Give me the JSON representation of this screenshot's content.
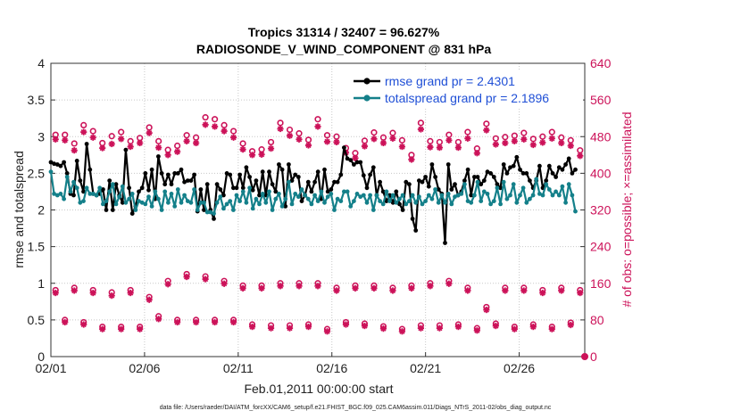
{
  "chart_data": {
    "type": "line",
    "title_line1": "Tropics 31314 / 32407 = 96.627%",
    "title_line2": "RADIOSONDE_V_WIND_COMPONENT @ 831 hPa",
    "ylabel": "rmse and totalspread",
    "y2label": "# of obs: o=possible; ×=assimilated",
    "xlabel": "Feb.01,2011 00:00:00 start",
    "footnote": "data file: /Users/raeder/DAI/ATM_forcXX/CAM6_setup/f.e21.FHIST_BGC.f09_025.CAM6assim.011/Diags_NTrS_2011-02/obs_diag_output.nc",
    "ylim": [
      0,
      4
    ],
    "y2lim": [
      0,
      640
    ],
    "xlim": [
      0,
      28.5
    ],
    "yticks": [
      "0",
      "0.5",
      "1",
      "1.5",
      "2",
      "2.5",
      "3",
      "3.5",
      "4"
    ],
    "y2ticks": [
      "0",
      "80",
      "160",
      "240",
      "320",
      "400",
      "480",
      "560",
      "640"
    ],
    "xticks": [
      {
        "x": 0,
        "label": "02/01"
      },
      {
        "x": 5,
        "label": "02/06"
      },
      {
        "x": 10,
        "label": "02/11"
      },
      {
        "x": 15,
        "label": "02/16"
      },
      {
        "x": 20,
        "label": "02/21"
      },
      {
        "x": 25,
        "label": "02/26"
      }
    ],
    "legend": [
      {
        "label": "rmse grand pr = 2.4301",
        "color": "#000000"
      },
      {
        "label": "totalspread grand pr = 2.1896",
        "color": "#14808a"
      }
    ],
    "series": [
      {
        "name": "rmse",
        "color": "#000000",
        "values": [
          2.65,
          2.63,
          2.62,
          2.6,
          2.65,
          2.5,
          2.22,
          2.2,
          2.67,
          2.4,
          2.25,
          2.9,
          2.55,
          2.22,
          2.2,
          2.22,
          2.28,
          2.0,
          2.4,
          2.0,
          2.35,
          2.2,
          2.1,
          2.82,
          2.3,
          1.95,
          2.05,
          2.25,
          2.3,
          2.5,
          2.27,
          2.55,
          2.15,
          2.73,
          2.5,
          2.35,
          2.48,
          2.35,
          2.5,
          2.5,
          2.55,
          2.38,
          2.4,
          2.4,
          2.48,
          1.98,
          2.28,
          2.0,
          2.35,
          2.0,
          1.88,
          2.35,
          2.28,
          2.2,
          2.5,
          2.48,
          2.3,
          2.3,
          2.48,
          2.3,
          2.58,
          2.45,
          2.27,
          2.4,
          2.2,
          2.52,
          2.2,
          2.52,
          2.35,
          2.25,
          2.62,
          2.55,
          2.05,
          2.62,
          2.4,
          2.48,
          2.45,
          2.12,
          2.2,
          2.38,
          2.25,
          2.38,
          2.52,
          2.15,
          2.55,
          2.25,
          2.28,
          2.38,
          2.38,
          2.48,
          2.85,
          2.7,
          2.68,
          2.62,
          2.65,
          2.65,
          2.47,
          2.3,
          2.48,
          2.58,
          2.2,
          2.38,
          2.25,
          2.12,
          2.2,
          2.1,
          2.25,
          2.08,
          2.0,
          2.38,
          2.35,
          1.88,
          1.72,
          2.4,
          2.38,
          2.45,
          2.32,
          2.62,
          2.45,
          2.28,
          2.22,
          1.55,
          2.62,
          2.28,
          2.35,
          2.2,
          2.25,
          2.4,
          2.55,
          2.2,
          2.45,
          2.45,
          2.35,
          2.4,
          2.52,
          2.5,
          2.45,
          2.35,
          2.3,
          2.62,
          2.5,
          2.58,
          2.6,
          2.72,
          2.55,
          2.5,
          2.5,
          2.4,
          2.3,
          2.4,
          2.6,
          2.3,
          2.4,
          2.6,
          2.5,
          2.45,
          2.58,
          2.55,
          2.62,
          2.7,
          2.5,
          2.55
        ]
      },
      {
        "name": "totalspread",
        "color": "#14808a",
        "values": [
          2.52,
          2.22,
          2.2,
          2.22,
          2.15,
          2.45,
          2.25,
          2.38,
          2.3,
          2.1,
          2.12,
          2.3,
          2.22,
          2.22,
          2.2,
          2.3,
          2.08,
          2.12,
          2.25,
          2.35,
          2.08,
          2.18,
          2.32,
          2.1,
          2.15,
          2.22,
          2.0,
          2.12,
          2.1,
          2.08,
          2.18,
          2.05,
          2.25,
          2.15,
          2.0,
          2.25,
          2.1,
          2.22,
          2.05,
          2.28,
          2.1,
          2.2,
          2.12,
          2.1,
          2.28,
          2.0,
          2.1,
          2.1,
          1.97,
          1.97,
          1.95,
          2.1,
          2.18,
          2.02,
          2.08,
          2.12,
          2.0,
          2.2,
          2.12,
          2.25,
          2.1,
          2.3,
          2.02,
          2.15,
          2.08,
          2.22,
          2.1,
          2.25,
          2.0,
          2.15,
          2.22,
          2.05,
          2.15,
          2.38,
          2.08,
          2.22,
          2.18,
          2.28,
          2.2,
          2.15,
          2.08,
          2.2,
          2.12,
          2.25,
          2.1,
          2.18,
          2.22,
          2.0,
          2.15,
          2.12,
          2.25,
          2.25,
          2.05,
          2.12,
          2.22,
          2.18,
          2.2,
          2.1,
          2.2,
          2.0,
          2.2,
          2.12,
          2.08,
          2.25,
          2.12,
          2.2,
          2.1,
          2.15,
          2.2,
          2.08,
          2.12,
          2.2,
          2.1,
          2.18,
          2.08,
          2.12,
          2.2,
          2.15,
          2.28,
          2.1,
          2.2,
          2.1,
          2.22,
          2.08,
          2.18,
          2.2,
          2.22,
          2.35,
          2.12,
          2.1,
          2.2,
          2.38,
          2.12,
          2.25,
          2.22,
          2.08,
          2.12,
          2.3,
          2.08,
          2.38,
          2.15,
          2.2,
          2.35,
          2.1,
          2.2,
          2.3,
          2.1,
          2.15,
          2.2,
          2.42,
          2.22,
          2.2,
          2.35,
          2.28,
          2.2,
          2.25,
          2.2,
          2.32,
          2.1,
          2.35,
          2.2,
          1.98
        ]
      }
    ],
    "obs_days": [
      0.25,
      0.75,
      1.25,
      1.75,
      2.25,
      2.75,
      3.25,
      3.75,
      4.25,
      4.75,
      5.25,
      5.75,
      6.25,
      6.75,
      7.25,
      7.75,
      8.25,
      8.75,
      9.25,
      9.75,
      10.25,
      10.75,
      11.25,
      11.75,
      12.25,
      12.75,
      13.25,
      13.75,
      14.25,
      14.75,
      15.25,
      15.75,
      16.25,
      16.75,
      17.25,
      17.75,
      18.25,
      18.75,
      19.25,
      19.75,
      20.25,
      20.75,
      21.25,
      21.75,
      22.25,
      22.75,
      23.25,
      23.75,
      24.25,
      24.75,
      25.25,
      25.75,
      26.25,
      26.75,
      27.25,
      27.75,
      28.25
    ],
    "obs_possible": [
      484,
      484,
      465,
      505,
      492,
      466,
      481,
      490,
      470,
      477,
      500,
      470,
      451,
      460,
      483,
      478,
      522,
      518,
      505,
      492,
      465,
      448,
      452,
      468,
      510,
      495,
      487,
      473,
      518,
      483,
      480,
      455,
      444,
      471,
      489,
      478,
      488,
      472,
      440,
      510,
      470,
      468,
      484,
      468,
      490,
      454,
      508,
      476,
      479,
      482,
      488,
      475,
      480,
      490,
      478,
      472,
      450
    ],
    "obs_assimilated": [
      474,
      472,
      450,
      490,
      478,
      455,
      464,
      475,
      458,
      466,
      488,
      456,
      440,
      447,
      470,
      466,
      506,
      502,
      492,
      478,
      452,
      440,
      441,
      454,
      497,
      482,
      474,
      461,
      502,
      469,
      468,
      445,
      433,
      459,
      475,
      466,
      476,
      458,
      430,
      496,
      457,
      456,
      472,
      456,
      476,
      444,
      494,
      463,
      466,
      470,
      474,
      462,
      467,
      476,
      466,
      460,
      438
    ],
    "obs2_possible": [
      145,
      80,
      150,
      75,
      145,
      65,
      140,
      65,
      145,
      65,
      130,
      88,
      165,
      80,
      180,
      80,
      175,
      80,
      165,
      80,
      155,
      70,
      155,
      68,
      160,
      68,
      160,
      70,
      160,
      60,
      150,
      75,
      155,
      72,
      155,
      66,
      150,
      60,
      155,
      68,
      160,
      68,
      165,
      70,
      150,
      62,
      108,
      72,
      150,
      65,
      150,
      70,
      145,
      65,
      150,
      74,
      145
    ],
    "obs2_assimilated": [
      139,
      75,
      144,
      70,
      139,
      60,
      133,
      60,
      139,
      60,
      124,
      82,
      158,
      75,
      174,
      75,
      169,
      75,
      159,
      75,
      149,
      65,
      149,
      62,
      154,
      62,
      154,
      65,
      154,
      55,
      144,
      70,
      149,
      67,
      149,
      61,
      144,
      55,
      149,
      62,
      154,
      62,
      159,
      65,
      144,
      57,
      102,
      67,
      144,
      60,
      144,
      65,
      139,
      60,
      144,
      69,
      139
    ],
    "end_point": {
      "x": 28.5,
      "y2": 0
    }
  }
}
